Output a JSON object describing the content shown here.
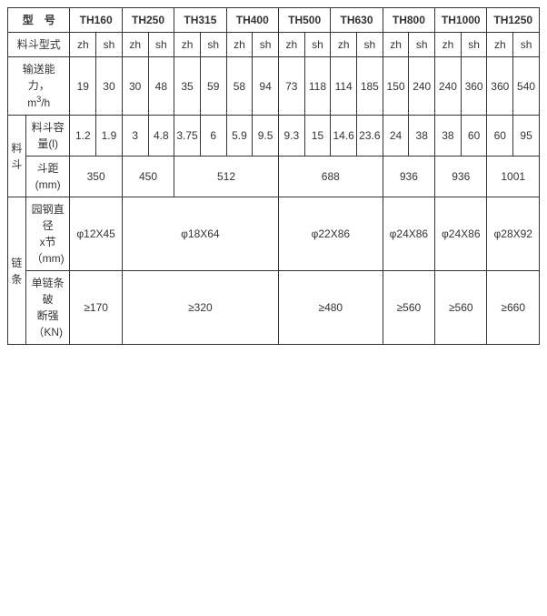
{
  "table": {
    "colors": {
      "border": "#333333",
      "text": "#333333",
      "background": "#ffffff"
    },
    "font_size_pt": 9,
    "header": {
      "model_label": "型　号",
      "models": [
        "TH160",
        "TH250",
        "TH315",
        "TH400",
        "TH500",
        "TH630",
        "TH800",
        "TH1000",
        "TH1250"
      ]
    },
    "row_bucket_type": {
      "label": "料斗型式",
      "values": [
        "zh",
        "sh",
        "zh",
        "sh",
        "zh",
        "sh",
        "zh",
        "sh",
        "zh",
        "sh",
        "zh",
        "sh",
        "zh",
        "sh",
        "zh",
        "sh",
        "zh",
        "sh"
      ]
    },
    "row_capacity": {
      "label_line1": "输送能",
      "label_line2": "力，",
      "label_line3_prefix": "m",
      "label_line3_sup": "3",
      "label_line3_suffix": "/h",
      "values": [
        "19",
        "30",
        "30",
        "48",
        "35",
        "59",
        "58",
        "94",
        "73",
        "118",
        "114",
        "185",
        "150",
        "240",
        "240",
        "360",
        "360",
        "540"
      ]
    },
    "section_bucket_label": "料斗",
    "row_bucket_volume": {
      "label_line1": "料斗容",
      "label_line2": "量(l)",
      "values": [
        "1.2",
        "1.9",
        "3",
        "4.8",
        "3.75",
        "6",
        "5.9",
        "9.5",
        "9.3",
        "15",
        "14.6",
        "23.6",
        "24",
        "38",
        "38",
        "60",
        "60",
        "95"
      ]
    },
    "row_bucket_spacing": {
      "label_line1": "斗距",
      "label_line2": "(mm)",
      "values": [
        "350",
        "450",
        "512",
        "688",
        "936",
        "936",
        "1001"
      ],
      "spans": [
        2,
        2,
        4,
        4,
        2,
        2,
        2
      ]
    },
    "section_chain_label": "链条",
    "row_round_steel": {
      "label_line1": "园钢直",
      "label_line2": "径",
      "label_line3": "x节",
      "label_line4": "（mm)",
      "values": [
        "φ12X45",
        "φ18X64",
        "φ22X86",
        "φ24X86",
        "φ24X86",
        "φ28X92"
      ],
      "spans": [
        2,
        6,
        4,
        2,
        2,
        2
      ]
    },
    "row_break_strength": {
      "label_line1": "单链条",
      "label_line2": "破",
      "label_line3": "断强",
      "label_line4": "（KN)",
      "values": [
        "≥170",
        "≥320",
        "≥480",
        "≥560",
        "≥560",
        "≥660"
      ],
      "spans": [
        2,
        6,
        4,
        2,
        2,
        2
      ]
    }
  }
}
